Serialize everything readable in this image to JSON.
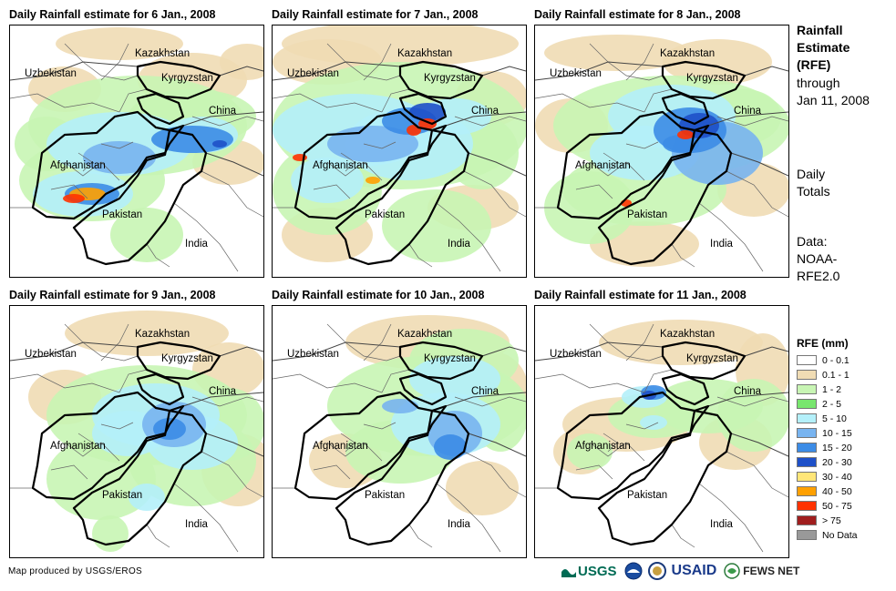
{
  "panels": [
    {
      "title": "Daily Rainfall estimate for 6 Jan., 2008",
      "pattern": "p6"
    },
    {
      "title": "Daily Rainfall estimate for 7 Jan., 2008",
      "pattern": "p7"
    },
    {
      "title": "Daily Rainfall estimate for 8 Jan., 2008",
      "pattern": "p8"
    },
    {
      "title": "Daily Rainfall estimate for 9 Jan., 2008",
      "pattern": "p9"
    },
    {
      "title": "Daily Rainfall estimate for 10 Jan., 2008",
      "pattern": "p10"
    },
    {
      "title": "Daily Rainfall estimate for 11 Jan., 2008",
      "pattern": "p11"
    }
  ],
  "map_labels": {
    "kazakhstan": "Kazakhstan",
    "uzbekistan": "Uzbekistan",
    "kyrgyzstan": "Kyrgyzstan",
    "china": "China",
    "afghanistan": "Afghanistan",
    "pakistan": "Pakistan",
    "india": "India"
  },
  "side": {
    "title_lines": [
      "Rainfall",
      "Estimate",
      "(RFE)"
    ],
    "through_lines": [
      "through",
      "Jan 11, 2008"
    ],
    "totals_lines": [
      "Daily",
      "Totals"
    ],
    "data_lines": [
      "Data:",
      "NOAA-",
      "RFE2.0"
    ]
  },
  "legend": {
    "title": "RFE (mm)",
    "items": [
      {
        "label": "0 - 0.1",
        "color": "#ffffff"
      },
      {
        "label": "0.1 - 1",
        "color": "#f0dcb4"
      },
      {
        "label": "1 - 2",
        "color": "#c8f5b4"
      },
      {
        "label": "2 - 5",
        "color": "#78e66e"
      },
      {
        "label": "5 - 10",
        "color": "#b4f0fa"
      },
      {
        "label": "10 - 15",
        "color": "#78b4f0"
      },
      {
        "label": "15 - 20",
        "color": "#3c8ce6"
      },
      {
        "label": "20 - 30",
        "color": "#1e50c8"
      },
      {
        "label": "30 - 40",
        "color": "#ffe678"
      },
      {
        "label": "40 - 50",
        "color": "#ffa000"
      },
      {
        "label": "50 - 75",
        "color": "#ff3200"
      },
      {
        "label": "> 75",
        "color": "#a01e1e"
      },
      {
        "label": "No Data",
        "color": "#999999"
      }
    ]
  },
  "credit": "Map produced by USGS/EROS",
  "logos": {
    "usgs": "USGS",
    "usaid": "USAID",
    "fewsnet": "FEWS NET"
  }
}
